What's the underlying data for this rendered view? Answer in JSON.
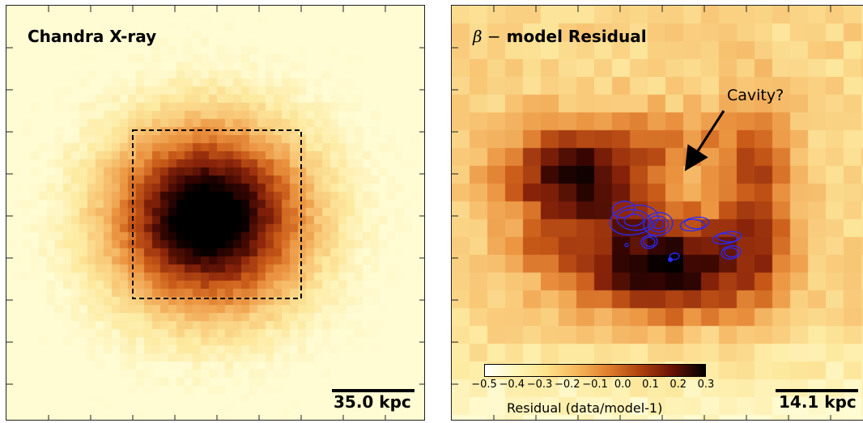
{
  "left_panel": {
    "title": "Chandra X-ray",
    "scale_label": "35.0 kpc"
  },
  "right_panel": {
    "title_symbol": "β −",
    "title_text": "model Residual",
    "annotation": "Cavity?",
    "scale_label": "14.1 kpc",
    "contour_color": "#2a2aff",
    "colorbar": {
      "ticks": [
        "−0.5",
        "−0.4",
        "−0.3",
        "−0.2",
        "−0.1",
        "0.0",
        "0.1",
        "0.2",
        "0.3"
      ],
      "label": "Residual (data/model-1)"
    }
  },
  "colormap": [
    "#fffbd2",
    "#fdeaa0",
    "#f8c574",
    "#eb9440",
    "#c95a18",
    "#8a240a",
    "#3a0602",
    "#000000"
  ]
}
